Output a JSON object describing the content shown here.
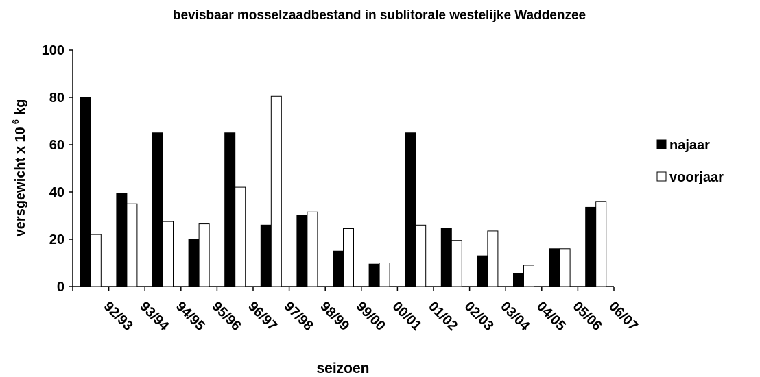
{
  "chart_data": {
    "type": "bar",
    "title": "bevisbaar mosselzaadbestand in sublitorale westelijke Waddenzee",
    "x_label": "seizoen",
    "y_label": "versgewicht x 10",
    "y_label_exponent": "6",
    "y_label_unit": "kg",
    "categories": [
      "92/93",
      "93/94",
      "94/95",
      "95/96",
      "96/97",
      "97/98",
      "98/99",
      "99/00",
      "00/01",
      "01/02",
      "02/03",
      "03/04",
      "04/05",
      "05/06",
      "06/07"
    ],
    "series": [
      {
        "name": "najaar",
        "color": "#000000",
        "values": [
          80,
          39.5,
          65,
          20,
          65,
          26,
          30,
          15,
          9.5,
          65,
          24.5,
          13,
          5.5,
          16,
          33.5
        ]
      },
      {
        "name": "voorjaar",
        "color": "#ffffff",
        "values": [
          22,
          35,
          27.5,
          26.5,
          42,
          80.5,
          31.5,
          24.5,
          10,
          26,
          19.5,
          23.5,
          9,
          16,
          36
        ]
      }
    ],
    "ylim": [
      0,
      100
    ],
    "yticks": [
      0,
      20,
      40,
      60,
      80,
      100
    ],
    "grid": false,
    "legend": "right"
  }
}
